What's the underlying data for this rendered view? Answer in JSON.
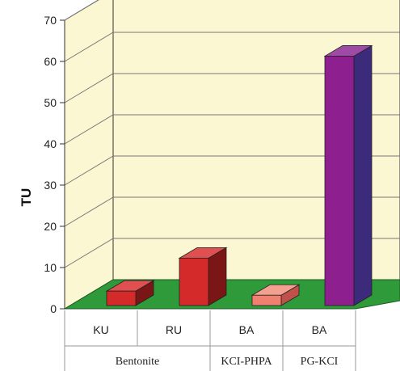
{
  "chart_data": {
    "type": "bar",
    "three_d": true,
    "ylabel": "TU",
    "xlabel": "",
    "ylim": [
      0,
      70
    ],
    "yticks": [
      0,
      10,
      20,
      30,
      40,
      50,
      60,
      70
    ],
    "grid": true,
    "categories": [
      "KU",
      "RU",
      "BA",
      "BA"
    ],
    "groups": [
      {
        "label": "Bentonite",
        "span": 2
      },
      {
        "label": "KCI-PHPA",
        "span": 1
      },
      {
        "label": "PG-KCI",
        "span": 1
      }
    ],
    "values": [
      3.5,
      11.5,
      2.5,
      60.5
    ],
    "colors": {
      "bars": [
        "#d42a2a",
        "#d42a2a",
        "#f08070",
        "#8e1f8e"
      ],
      "bar_side": [
        "#7a1616",
        "#7a1616",
        "#c0504a",
        "#3c2a7a"
      ],
      "bar_top": [
        "#e05050",
        "#e05050",
        "#f4a090",
        "#a04aa8"
      ],
      "wall": "#fbf7d2",
      "floor": "#2e9a3a"
    }
  }
}
